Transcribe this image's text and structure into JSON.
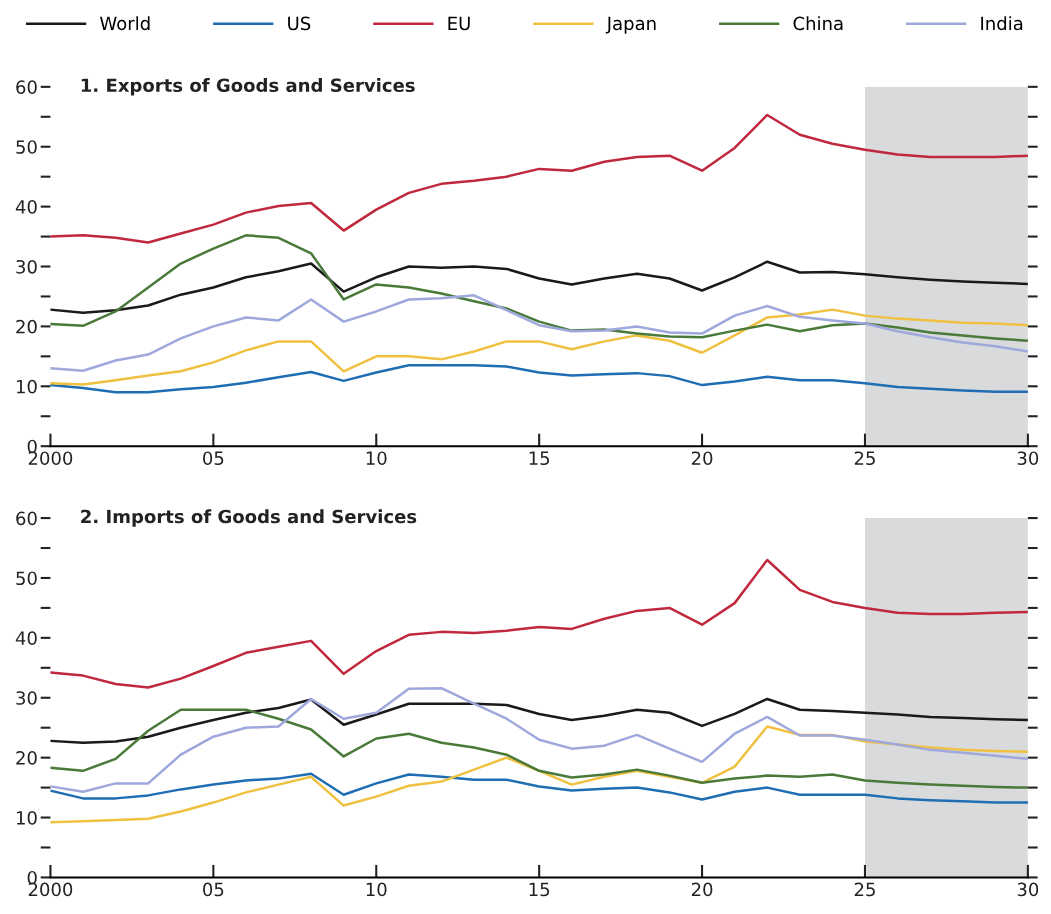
{
  "chart_data": [
    {
      "type": "line",
      "title": "1. Exports of Goods and Services",
      "legend": "top",
      "grid": false,
      "x": [
        2000,
        2001,
        2002,
        2003,
        2004,
        2005,
        2006,
        2007,
        2008,
        2009,
        2010,
        2011,
        2012,
        2013,
        2014,
        2015,
        2016,
        2017,
        2018,
        2019,
        2020,
        2021,
        2022,
        2023,
        2024,
        2025,
        2026,
        2027,
        2028,
        2029,
        2030
      ],
      "xlim": [
        2000,
        2030
      ],
      "xticks": [
        2000,
        {
          "value": 2005,
          "label": "05"
        },
        {
          "value": 2010,
          "label": "10"
        },
        {
          "value": 2015,
          "label": "15"
        },
        {
          "value": 2020,
          "label": "20"
        },
        {
          "value": 2025,
          "label": "25"
        },
        {
          "value": 2030,
          "label": "30"
        }
      ],
      "ylim": [
        0,
        60
      ],
      "yticks": [
        0,
        {
          "value": 5,
          "label": null
        },
        10,
        {
          "value": 15,
          "label": null
        },
        20,
        {
          "value": 25,
          "label": null
        },
        30,
        {
          "value": 35,
          "label": null
        },
        40,
        {
          "value": 45,
          "label": null
        },
        50,
        {
          "value": 55,
          "label": null
        },
        60
      ],
      "bands": [
        {
          "axis": "x",
          "from": 2025,
          "to": 2030,
          "label": null,
          "color": "#d9dadc"
        }
      ],
      "series": [
        {
          "name": "World",
          "color": "#1a1a1a",
          "values": [
            22.8,
            22.3,
            22.7,
            23.5,
            25.3,
            26.5,
            28.2,
            29.2,
            30.5,
            25.8,
            28.2,
            30,
            29.8,
            30,
            29.6,
            28,
            27,
            28,
            28.8,
            28,
            26,
            28.2,
            30.8,
            29,
            29.1,
            28.7,
            28.2,
            27.8,
            27.5,
            27.3,
            27.1
          ]
        },
        {
          "name": "US",
          "color": "#1f6eb4",
          "values": [
            10.2,
            9.7,
            9.0,
            9.0,
            9.5,
            9.9,
            10.6,
            11.5,
            12.4,
            10.9,
            12.3,
            13.5,
            13.5,
            13.5,
            13.3,
            12.3,
            11.8,
            12.0,
            12.2,
            11.7,
            10.2,
            10.8,
            11.6,
            11.0,
            11.0,
            10.5,
            9.9,
            9.6,
            9.3,
            9.1,
            9.1
          ]
        },
        {
          "name": "EU",
          "color": "#c0283e",
          "values": [
            35,
            35.2,
            34.8,
            34,
            35.5,
            37,
            39,
            40.1,
            40.6,
            36,
            39.5,
            42.3,
            43.8,
            44.3,
            45,
            46.3,
            46,
            47.5,
            48.3,
            48.5,
            46,
            49.8,
            55.3,
            52,
            50.5,
            49.5,
            48.7,
            48.3,
            48.3,
            48.3,
            48.5
          ]
        },
        {
          "name": "Japan",
          "color": "#f0c040",
          "values": [
            10.5,
            10.3,
            11,
            11.8,
            12.5,
            14,
            16,
            17.5,
            17.5,
            12.5,
            15,
            15,
            14.5,
            15.8,
            17.5,
            17.5,
            16.2,
            17.5,
            18.5,
            17.6,
            15.6,
            18.5,
            21.5,
            22,
            22.8,
            21.8,
            21.3,
            21,
            20.6,
            20.5,
            20.2
          ]
        },
        {
          "name": "China",
          "color": "#4a7a3a",
          "values": [
            20.4,
            20.1,
            22.5,
            26.5,
            30.5,
            33,
            35.2,
            34.8,
            32.2,
            24.5,
            27,
            26.5,
            25.5,
            24.2,
            23,
            20.8,
            19.3,
            19.5,
            18.8,
            18.3,
            18.2,
            19.3,
            20.3,
            19.2,
            20.2,
            20.5,
            19.8,
            19,
            18.5,
            18,
            17.6
          ]
        },
        {
          "name": "India",
          "color": "#9ea8dc",
          "values": [
            13,
            12.6,
            14.3,
            15.3,
            18,
            20,
            21.5,
            21,
            24.5,
            20.8,
            22.5,
            24.5,
            24.7,
            25.2,
            22.7,
            20.2,
            19.2,
            19.3,
            20,
            19,
            18.8,
            21.8,
            23.4,
            21.6,
            21,
            20.5,
            19.2,
            18.2,
            17.3,
            16.7,
            15.8
          ]
        }
      ]
    },
    {
      "type": "line",
      "title": "2. Imports of Goods and Services",
      "grid": false,
      "x": [
        2000,
        2001,
        2002,
        2003,
        2004,
        2005,
        2006,
        2007,
        2008,
        2009,
        2010,
        2011,
        2012,
        2013,
        2014,
        2015,
        2016,
        2017,
        2018,
        2019,
        2020,
        2021,
        2022,
        2023,
        2024,
        2025,
        2026,
        2027,
        2028,
        2029,
        2030
      ],
      "xlim": [
        2000,
        2030
      ],
      "xticks": [
        2000,
        {
          "value": 2005,
          "label": "05"
        },
        {
          "value": 2010,
          "label": "10"
        },
        {
          "value": 2015,
          "label": "15"
        },
        {
          "value": 2020,
          "label": "20"
        },
        {
          "value": 2025,
          "label": "25"
        },
        {
          "value": 2030,
          "label": "30"
        }
      ],
      "ylim": [
        0,
        60
      ],
      "yticks": [
        0,
        {
          "value": 5,
          "label": null
        },
        10,
        {
          "value": 15,
          "label": null
        },
        20,
        {
          "value": 25,
          "label": null
        },
        30,
        {
          "value": 35,
          "label": null
        },
        40,
        {
          "value": 45,
          "label": null
        },
        50,
        {
          "value": 55,
          "label": null
        },
        60
      ],
      "bands": [
        {
          "axis": "x",
          "from": 2025,
          "to": 2030,
          "label": null,
          "color": "#d9dadc"
        }
      ],
      "series": [
        {
          "color": "#1a1a1a",
          "values": [
            22.8,
            22.5,
            22.7,
            23.5,
            25,
            26.3,
            27.5,
            28.3,
            29.7,
            25.5,
            27.2,
            29,
            29,
            29,
            28.8,
            27.3,
            26.3,
            27,
            28,
            27.5,
            25.3,
            27.3,
            29.8,
            28,
            27.8,
            27.5,
            27.2,
            26.8,
            26.6,
            26.4,
            26.3
          ]
        },
        {
          "color": "#1f6eb4",
          "values": [
            14.5,
            13.2,
            13.2,
            13.7,
            14.7,
            15.5,
            16.2,
            16.5,
            17.3,
            13.8,
            15.7,
            17.2,
            16.8,
            16.3,
            16.3,
            15.2,
            14.5,
            14.8,
            15,
            14.2,
            13,
            14.3,
            15,
            13.8,
            13.8,
            13.8,
            13.2,
            12.9,
            12.7,
            12.5,
            12.5
          ]
        },
        {
          "color": "#c0283e",
          "values": [
            34.2,
            33.7,
            32.3,
            31.7,
            33.2,
            35.3,
            37.5,
            38.5,
            39.5,
            34,
            37.8,
            40.5,
            41,
            40.8,
            41.2,
            41.8,
            41.5,
            43.2,
            44.5,
            45,
            42.2,
            45.8,
            53,
            48,
            46,
            45,
            44.2,
            44,
            44,
            44.2,
            44.3
          ]
        },
        {
          "color": "#f0c040",
          "values": [
            9.2,
            9.4,
            9.6,
            9.8,
            11,
            12.5,
            14.2,
            15.5,
            16.8,
            12,
            13.5,
            15.3,
            16,
            18,
            20,
            17.8,
            15.5,
            16.8,
            17.8,
            16.8,
            15.8,
            18.5,
            25.2,
            23.8,
            23.8,
            22.7,
            22.2,
            21.7,
            21.3,
            21.1,
            21
          ]
        },
        {
          "color": "#4a7a3a",
          "values": [
            18.3,
            17.8,
            19.8,
            24.5,
            28,
            28,
            28,
            26.5,
            24.7,
            20.2,
            23.2,
            24,
            22.5,
            21.7,
            20.5,
            17.8,
            16.7,
            17.2,
            18,
            17,
            15.8,
            16.5,
            17,
            16.8,
            17.2,
            16.2,
            15.8,
            15.5,
            15.3,
            15.1,
            15
          ]
        },
        {
          "color": "#9ea8dc",
          "values": [
            15.2,
            14.3,
            15.7,
            15.7,
            20.5,
            23.5,
            25,
            25.2,
            29.8,
            26.5,
            27.5,
            31.5,
            31.6,
            29,
            26.5,
            23,
            21.5,
            22,
            23.8,
            21.5,
            19.3,
            24,
            26.8,
            23.7,
            23.7,
            23,
            22.2,
            21.3,
            20.8,
            20.3,
            19.8
          ]
        }
      ]
    }
  ]
}
